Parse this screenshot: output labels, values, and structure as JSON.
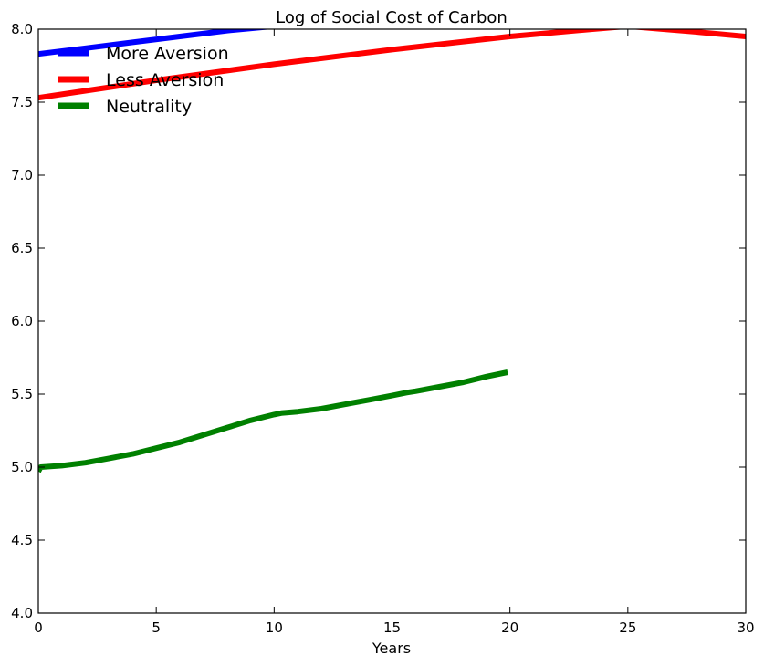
{
  "chart_data": {
    "type": "line",
    "title": "Log of Social Cost of Carbon",
    "xlabel": "Years",
    "ylabel": "",
    "xlim": [
      0,
      30
    ],
    "ylim": [
      4.0,
      8.0
    ],
    "xticks": [
      0,
      5,
      10,
      15,
      20,
      25,
      30
    ],
    "xtick_labels": [
      "0",
      "5",
      "10",
      "15",
      "20",
      "25",
      "30"
    ],
    "yticks": [
      4.0,
      4.5,
      5.0,
      5.5,
      6.0,
      6.5,
      7.0,
      7.5,
      8.0
    ],
    "ytick_labels": [
      "4.0",
      "4.5",
      "5.0",
      "5.5",
      "6.0",
      "6.5",
      "7.0",
      "7.5",
      "8.0"
    ],
    "grid": false,
    "legend_position": "top-left",
    "series": [
      {
        "name": "More Aversion",
        "color": "#0000ff",
        "x": [
          0,
          2,
          4,
          6,
          8,
          10,
          12
        ],
        "y": [
          7.83,
          7.87,
          7.91,
          7.95,
          7.99,
          8.02,
          8.05
        ]
      },
      {
        "name": "Less Aversion",
        "color": "#ff0000",
        "x": [
          0,
          5,
          10,
          15,
          20,
          23.5,
          25,
          26.5,
          28,
          30
        ],
        "y": [
          7.53,
          7.65,
          7.76,
          7.86,
          7.95,
          8.0,
          8.02,
          8.0,
          7.98,
          7.95
        ]
      },
      {
        "name": "Neutrality",
        "color": "#008000",
        "x": [
          0,
          0.1,
          1,
          2,
          3,
          4,
          5,
          6,
          7,
          8,
          9,
          10,
          10.3,
          11,
          12,
          13,
          14,
          15,
          15.6,
          16,
          17,
          18,
          19,
          19.9
        ],
        "y": [
          4.97,
          5.0,
          5.01,
          5.03,
          5.06,
          5.09,
          5.13,
          5.17,
          5.22,
          5.27,
          5.32,
          5.36,
          5.37,
          5.38,
          5.4,
          5.43,
          5.46,
          5.49,
          5.51,
          5.52,
          5.55,
          5.58,
          5.62,
          5.65
        ]
      }
    ]
  }
}
